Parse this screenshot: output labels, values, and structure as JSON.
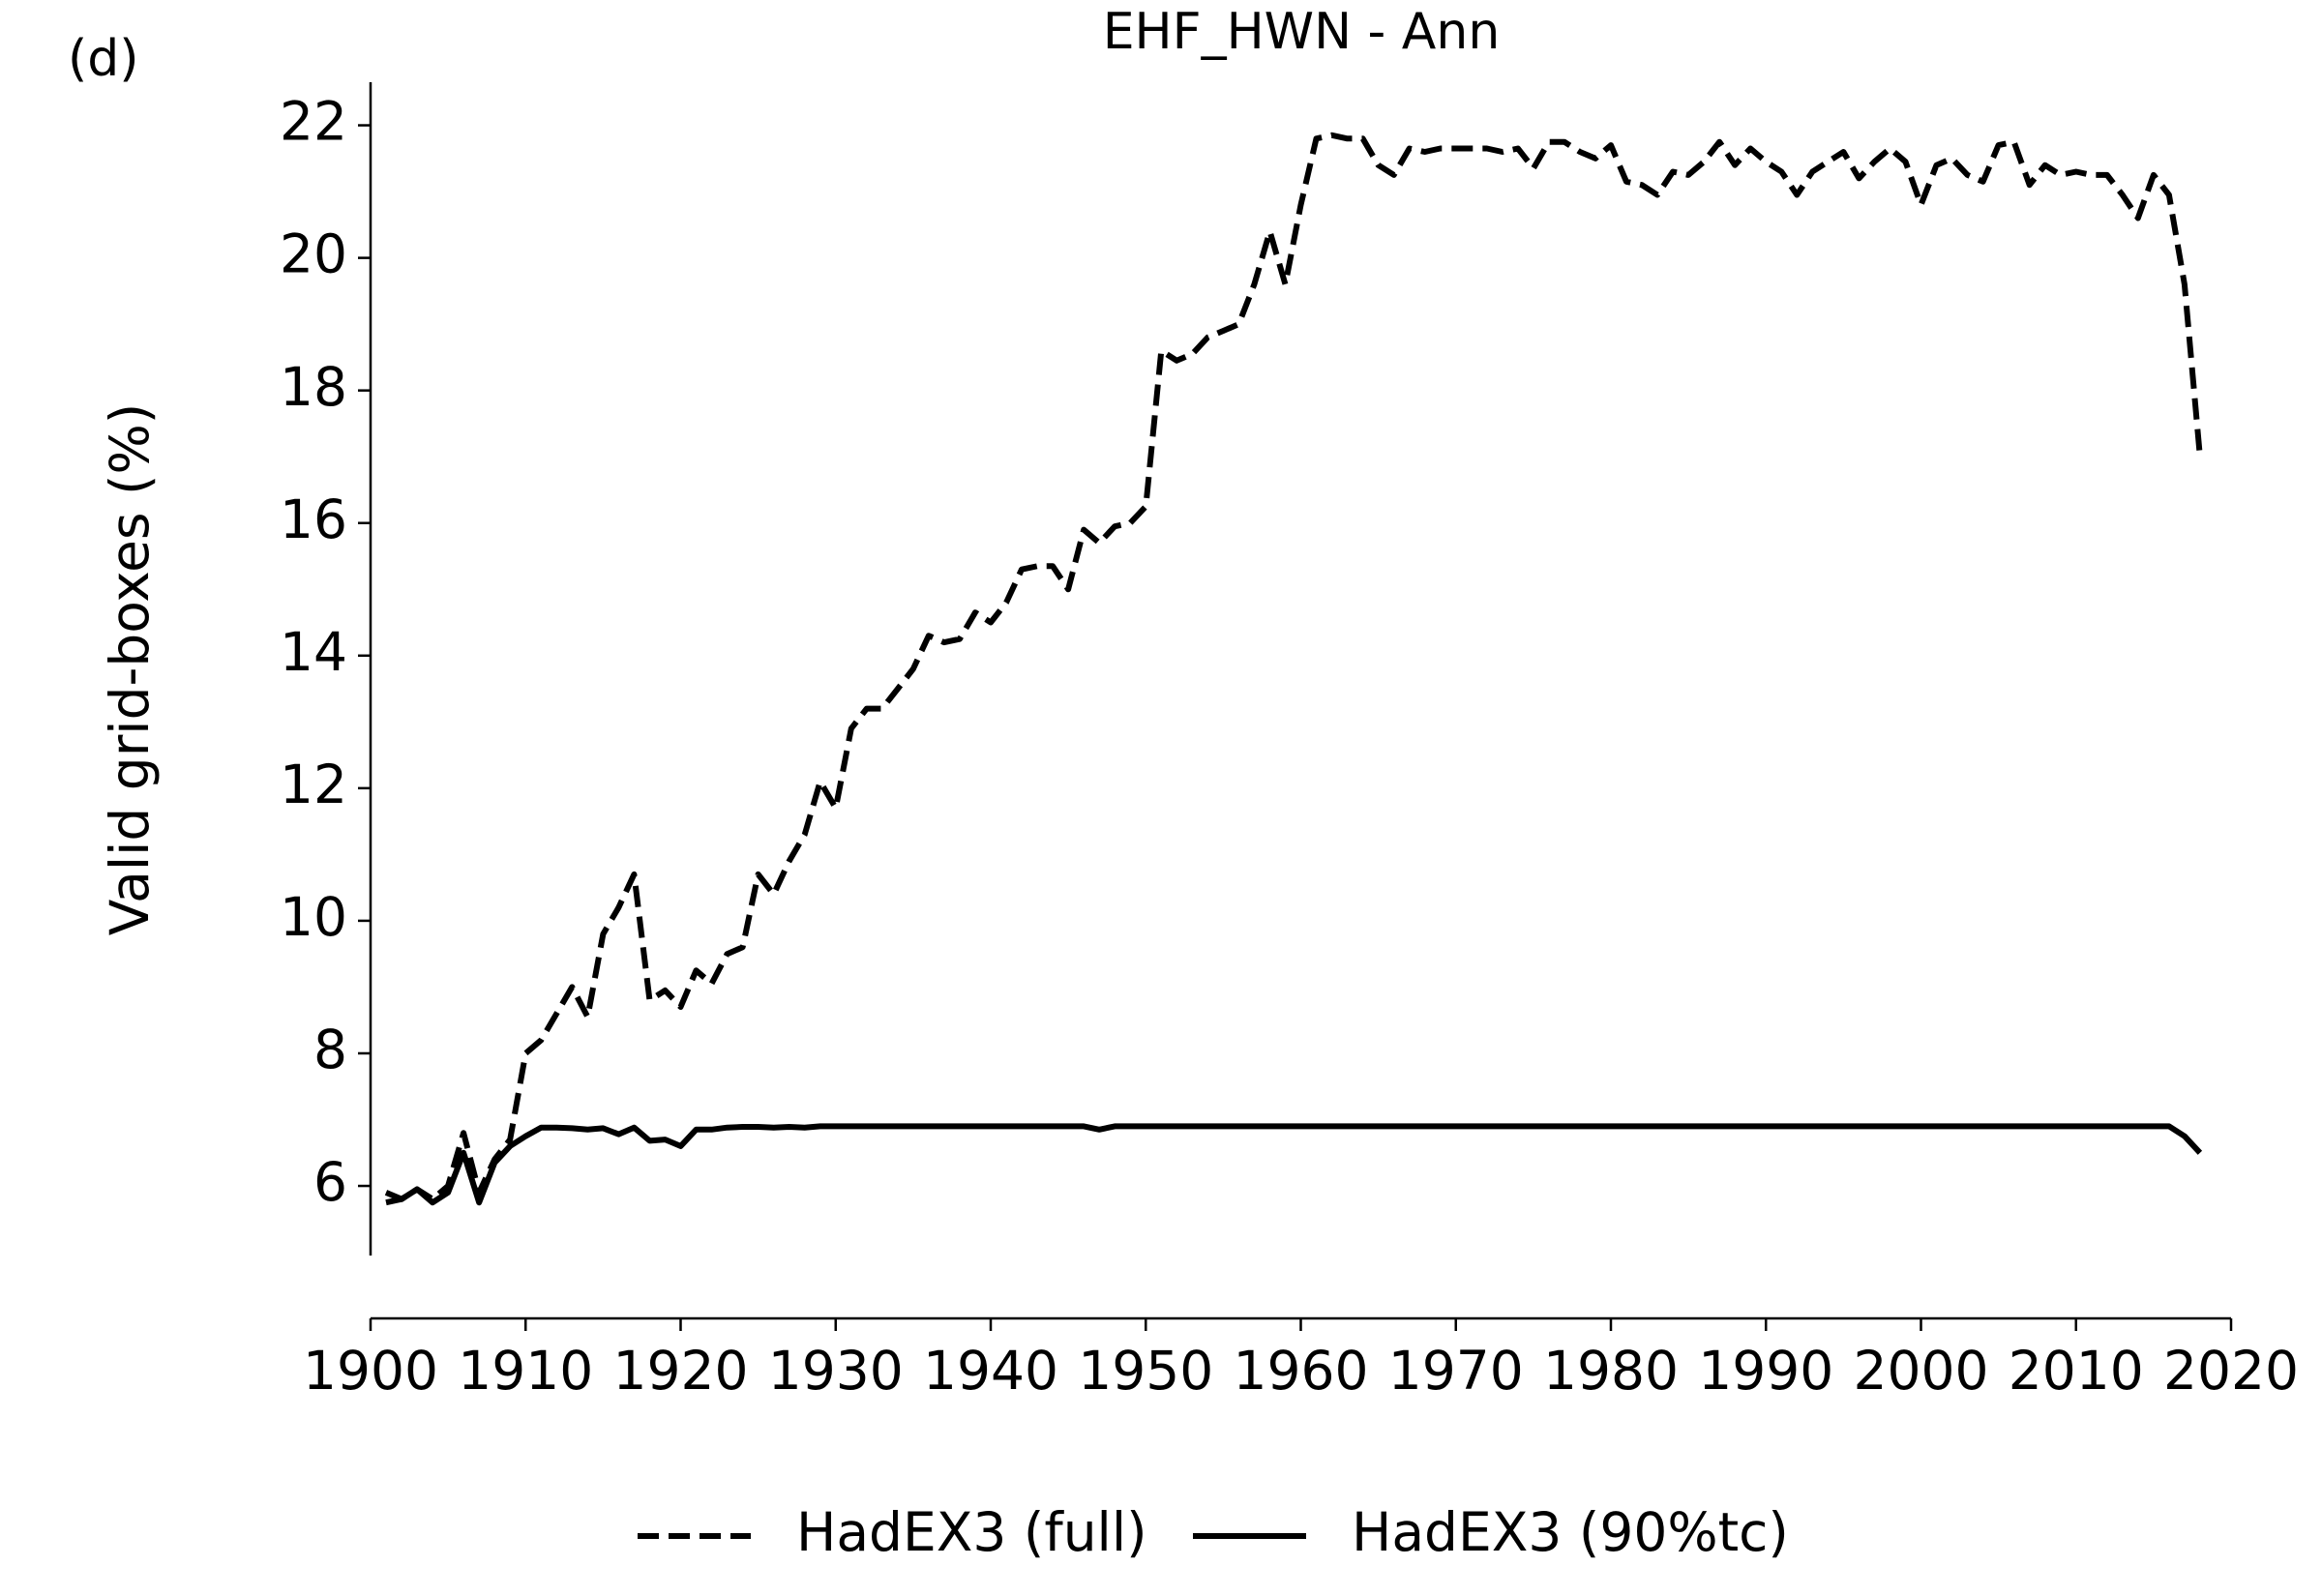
{
  "chart_data": {
    "type": "line",
    "title": "EHF_HWN - Ann",
    "panel_label": "(d)",
    "ylabel": "Valid grid-boxes (%)",
    "x": [
      1901,
      1902,
      1903,
      1904,
      1905,
      1906,
      1907,
      1908,
      1909,
      1910,
      1911,
      1912,
      1913,
      1914,
      1915,
      1916,
      1917,
      1918,
      1919,
      1920,
      1921,
      1922,
      1923,
      1924,
      1925,
      1926,
      1927,
      1928,
      1929,
      1930,
      1931,
      1932,
      1933,
      1934,
      1935,
      1936,
      1937,
      1938,
      1939,
      1940,
      1941,
      1942,
      1943,
      1944,
      1945,
      1946,
      1947,
      1948,
      1949,
      1950,
      1951,
      1952,
      1953,
      1954,
      1955,
      1956,
      1957,
      1958,
      1959,
      1960,
      1961,
      1962,
      1963,
      1964,
      1965,
      1966,
      1967,
      1968,
      1969,
      1970,
      1971,
      1972,
      1973,
      1974,
      1975,
      1976,
      1977,
      1978,
      1979,
      1980,
      1981,
      1982,
      1983,
      1984,
      1985,
      1986,
      1987,
      1988,
      1989,
      1990,
      1991,
      1992,
      1993,
      1994,
      1995,
      1996,
      1997,
      1998,
      1999,
      2000,
      2001,
      2002,
      2003,
      2004,
      2005,
      2006,
      2007,
      2008,
      2009,
      2010,
      2011,
      2012,
      2013,
      2014,
      2015,
      2016,
      2017,
      2018
    ],
    "series": [
      {
        "name": "HadEX3 (full)",
        "color": "#000000",
        "dash": true,
        "values": [
          5.9,
          5.8,
          5.95,
          5.8,
          6.0,
          6.8,
          5.9,
          6.4,
          6.7,
          8.0,
          8.2,
          8.6,
          9.0,
          8.55,
          9.8,
          10.2,
          10.7,
          8.8,
          8.95,
          8.7,
          9.25,
          9.05,
          9.5,
          9.6,
          10.7,
          10.4,
          10.9,
          11.3,
          12.1,
          11.7,
          12.9,
          13.2,
          13.2,
          13.5,
          13.8,
          14.3,
          14.2,
          14.25,
          14.65,
          14.5,
          14.8,
          15.3,
          15.35,
          15.35,
          15.0,
          15.9,
          15.7,
          15.95,
          16.0,
          16.25,
          18.6,
          18.45,
          18.55,
          18.8,
          18.9,
          19.0,
          19.6,
          20.4,
          19.6,
          20.8,
          21.8,
          21.85,
          21.8,
          21.8,
          21.4,
          21.25,
          21.65,
          21.6,
          21.65,
          21.65,
          21.65,
          21.65,
          21.6,
          21.65,
          21.35,
          21.75,
          21.75,
          21.6,
          21.5,
          21.7,
          21.15,
          21.1,
          20.95,
          21.3,
          21.25,
          21.45,
          21.75,
          21.4,
          21.65,
          21.45,
          21.3,
          20.95,
          21.3,
          21.45,
          21.6,
          21.2,
          21.45,
          21.65,
          21.45,
          20.8,
          21.4,
          21.5,
          21.25,
          21.15,
          21.7,
          21.75,
          21.1,
          21.4,
          21.25,
          21.3,
          21.25,
          21.25,
          20.95,
          20.6,
          21.25,
          20.95,
          19.6,
          17.0
        ]
      },
      {
        "name": "HadEX3 (90%tc)",
        "color": "#000000",
        "dash": false,
        "values": [
          5.75,
          5.8,
          5.95,
          5.75,
          5.9,
          6.5,
          5.75,
          6.35,
          6.6,
          6.75,
          6.88,
          6.88,
          6.87,
          6.85,
          6.87,
          6.78,
          6.88,
          6.68,
          6.7,
          6.6,
          6.85,
          6.85,
          6.88,
          6.89,
          6.89,
          6.88,
          6.89,
          6.88,
          6.9,
          6.9,
          6.9,
          6.9,
          6.9,
          6.9,
          6.9,
          6.9,
          6.9,
          6.9,
          6.9,
          6.9,
          6.9,
          6.9,
          6.9,
          6.9,
          6.9,
          6.9,
          6.85,
          6.9,
          6.9,
          6.9,
          6.9,
          6.9,
          6.9,
          6.9,
          6.9,
          6.9,
          6.9,
          6.9,
          6.9,
          6.9,
          6.9,
          6.9,
          6.9,
          6.9,
          6.9,
          6.9,
          6.9,
          6.9,
          6.9,
          6.9,
          6.9,
          6.9,
          6.9,
          6.9,
          6.9,
          6.9,
          6.9,
          6.9,
          6.9,
          6.9,
          6.9,
          6.9,
          6.9,
          6.9,
          6.9,
          6.9,
          6.9,
          6.9,
          6.9,
          6.9,
          6.9,
          6.9,
          6.9,
          6.9,
          6.9,
          6.9,
          6.9,
          6.9,
          6.9,
          6.9,
          6.9,
          6.9,
          6.9,
          6.9,
          6.9,
          6.9,
          6.9,
          6.9,
          6.9,
          6.9,
          6.9,
          6.9,
          6.9,
          6.9,
          6.9,
          6.9,
          6.75,
          6.5
        ]
      }
    ],
    "xlim": [
      1900,
      2020
    ],
    "xticks": [
      1900,
      1910,
      1920,
      1930,
      1940,
      1950,
      1960,
      1970,
      1980,
      1990,
      2000,
      2010,
      2020
    ],
    "ylim": [
      4.95,
      22.65
    ],
    "yticks": [
      6,
      8,
      10,
      12,
      14,
      16,
      18,
      20,
      22
    ],
    "grid": false,
    "legend": "bottom"
  }
}
